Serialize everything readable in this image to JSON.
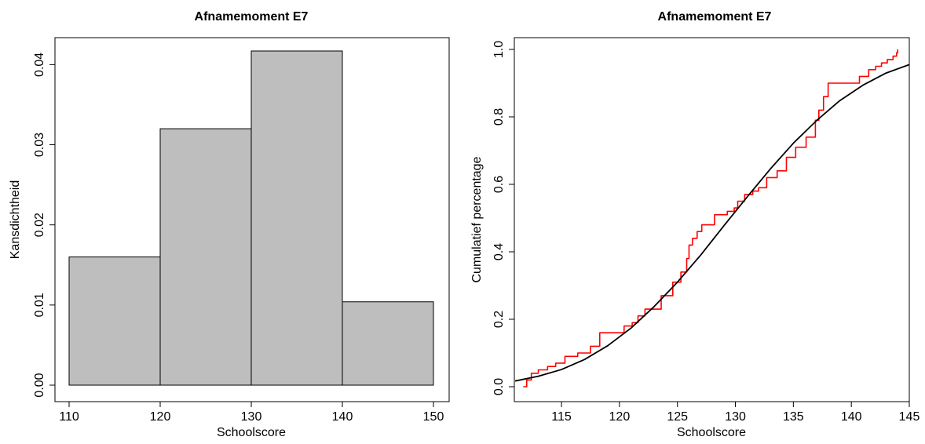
{
  "chart_data": [
    {
      "type": "bar",
      "title": "Afnamemoment E7",
      "xlabel": "Schoolscore",
      "ylabel": "Kansdichtheid",
      "bins": [
        {
          "from": 110,
          "to": 120,
          "value": 0.016
        },
        {
          "from": 120,
          "to": 130,
          "value": 0.032
        },
        {
          "from": 130,
          "to": 140,
          "value": 0.0417
        },
        {
          "from": 140,
          "to": 150,
          "value": 0.0104
        }
      ],
      "xlim": [
        110,
        150
      ],
      "ylim": [
        0,
        0.0417
      ],
      "xticks": [
        "110",
        "120",
        "130",
        "140",
        "150"
      ],
      "yticks": [
        "0.00",
        "0.01",
        "0.02",
        "0.03",
        "0.04"
      ],
      "bar_color": "#bebebe",
      "grid": false
    },
    {
      "type": "line",
      "title": "Afnamemoment E7",
      "xlabel": "Schoolscore",
      "ylabel": "Cumulatief percentage",
      "xlim": [
        111,
        145
      ],
      "ylim": [
        0,
        1
      ],
      "xticks": [
        "115",
        "120",
        "125",
        "130",
        "135",
        "140",
        "145"
      ],
      "yticks": [
        "0.0",
        "0.2",
        "0.4",
        "0.6",
        "0.8",
        "1.0"
      ],
      "grid": false,
      "series": [
        {
          "kind": "step",
          "color": "#ff0000",
          "x": [
            111.7,
            112.0,
            112.4,
            113.0,
            113.8,
            114.5,
            115.3,
            116.4,
            117.5,
            118.3,
            120.4,
            121.1,
            121.6,
            122.2,
            123.6,
            124.6,
            125.3,
            125.8,
            126.0,
            126.3,
            126.7,
            127.1,
            128.2,
            129.3,
            129.9,
            130.2,
            130.8,
            131.5,
            132.0,
            132.7,
            133.6,
            134.4,
            135.2,
            136.1,
            136.9,
            137.2,
            137.6,
            138.0,
            139.1,
            140.7,
            141.5,
            142.1,
            142.6,
            143.1,
            143.6,
            143.9,
            144.0
          ],
          "y": [
            0.0,
            0.02,
            0.04,
            0.05,
            0.06,
            0.07,
            0.09,
            0.1,
            0.12,
            0.16,
            0.18,
            0.19,
            0.21,
            0.23,
            0.27,
            0.31,
            0.34,
            0.38,
            0.42,
            0.44,
            0.46,
            0.48,
            0.51,
            0.52,
            0.53,
            0.55,
            0.57,
            0.58,
            0.59,
            0.62,
            0.64,
            0.68,
            0.71,
            0.74,
            0.79,
            0.82,
            0.86,
            0.9,
            0.9,
            0.92,
            0.94,
            0.95,
            0.96,
            0.97,
            0.98,
            0.99,
            1.0
          ]
        },
        {
          "kind": "curve",
          "color": "#000000",
          "x": [
            111,
            113,
            115,
            117,
            119,
            121,
            123,
            125,
            127,
            129,
            131,
            133,
            135,
            137,
            139,
            141,
            143,
            145
          ],
          "y": [
            0.017,
            0.031,
            0.051,
            0.081,
            0.122,
            0.174,
            0.238,
            0.31,
            0.39,
            0.477,
            0.562,
            0.645,
            0.722,
            0.789,
            0.848,
            0.894,
            0.93,
            0.955
          ]
        }
      ]
    }
  ]
}
